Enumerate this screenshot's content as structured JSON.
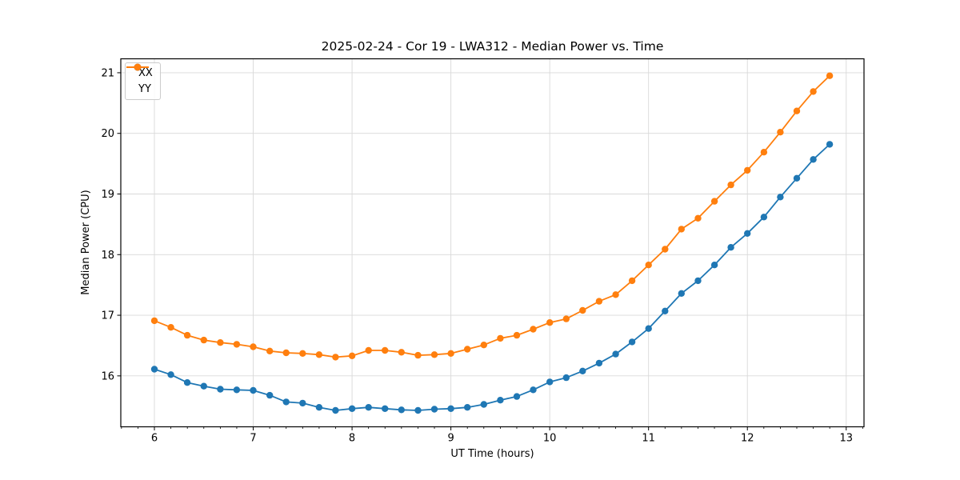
{
  "chart_data": {
    "type": "line",
    "title": "2025-02-24 - Cor 19 - LWA312 - Median Power vs. Time",
    "xlabel": "UT Time (hours)",
    "ylabel": "Median Power (CPU)",
    "legend_position": "upper left",
    "grid": true,
    "x_ticks": [
      6,
      7,
      8,
      9,
      10,
      11,
      12,
      13
    ],
    "y_ticks": [
      16,
      17,
      18,
      19,
      20,
      21
    ],
    "xlim": [
      5.66,
      13.18
    ],
    "ylim": [
      15.16,
      21.23
    ],
    "x_minor_divisions": 6,
    "x": [
      6.0,
      6.167,
      6.333,
      6.5,
      6.667,
      6.833,
      7.0,
      7.167,
      7.333,
      7.5,
      7.667,
      7.833,
      8.0,
      8.167,
      8.333,
      8.5,
      8.667,
      8.833,
      9.0,
      9.167,
      9.333,
      9.5,
      9.667,
      9.833,
      10.0,
      10.167,
      10.333,
      10.5,
      10.667,
      10.833,
      11.0,
      11.167,
      11.333,
      11.5,
      11.667,
      11.833,
      12.0,
      12.167,
      12.333,
      12.5,
      12.667,
      12.833
    ],
    "series": [
      {
        "name": "XX",
        "color": "#1f77b4",
        "values": [
          16.11,
          16.02,
          15.89,
          15.83,
          15.78,
          15.77,
          15.76,
          15.68,
          15.57,
          15.55,
          15.48,
          15.43,
          15.46,
          15.48,
          15.46,
          15.44,
          15.43,
          15.45,
          15.46,
          15.48,
          15.53,
          15.6,
          15.66,
          15.77,
          15.9,
          15.97,
          16.08,
          16.21,
          16.36,
          16.56,
          16.78,
          17.07,
          17.36,
          17.57,
          17.83,
          18.12,
          18.35,
          18.62,
          18.95,
          19.26,
          19.57,
          19.82
        ]
      },
      {
        "name": "YY",
        "color": "#ff7f0e",
        "values": [
          16.91,
          16.8,
          16.67,
          16.59,
          16.55,
          16.52,
          16.48,
          16.41,
          16.38,
          16.37,
          16.35,
          16.31,
          16.33,
          16.42,
          16.42,
          16.39,
          16.34,
          16.35,
          16.37,
          16.44,
          16.51,
          16.62,
          16.67,
          16.77,
          16.88,
          16.94,
          17.08,
          17.23,
          17.34,
          17.57,
          17.83,
          18.09,
          18.42,
          18.6,
          18.88,
          19.15,
          19.39,
          19.69,
          20.02,
          20.37,
          20.69,
          20.95
        ]
      }
    ]
  },
  "colors": {
    "background": "#ffffff",
    "grid": "#d9d9d9",
    "spine": "#000000",
    "tick": "#000000",
    "text": "#000000",
    "legend_border": "#cccccc"
  }
}
